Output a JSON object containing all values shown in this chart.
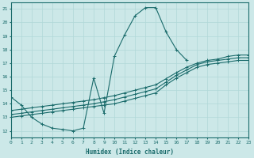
{
  "xlabel": "Humidex (Indice chaleur)",
  "xlim": [
    0,
    23
  ],
  "ylim": [
    11.5,
    21.5
  ],
  "xticks": [
    0,
    1,
    2,
    3,
    4,
    5,
    6,
    7,
    8,
    9,
    10,
    11,
    12,
    13,
    14,
    15,
    16,
    17,
    18,
    19,
    20,
    21,
    22,
    23
  ],
  "yticks": [
    12,
    13,
    14,
    15,
    16,
    17,
    18,
    19,
    20,
    21
  ],
  "bg_color": "#cce8e8",
  "grid_color": "#b0d8d8",
  "line_color": "#1a6b6b",
  "curves": {
    "curve1": {
      "x": [
        0,
        1,
        2,
        3,
        4,
        5,
        6,
        7,
        8,
        9,
        10,
        11,
        12,
        13,
        14,
        15,
        16,
        17
      ],
      "y": [
        14.5,
        13.9,
        13.0,
        12.5,
        12.2,
        12.1,
        12.0,
        12.2,
        15.9,
        13.3,
        17.5,
        19.1,
        20.5,
        21.1,
        21.1,
        19.3,
        18.0,
        17.2
      ]
    },
    "curve2": {
      "x": [
        0,
        1,
        2,
        3,
        4,
        5,
        6,
        7,
        8,
        9,
        10,
        11,
        12,
        13,
        14,
        15,
        16,
        17,
        18,
        19,
        20,
        21,
        22,
        23
      ],
      "y": [
        13.0,
        13.1,
        13.2,
        13.3,
        13.4,
        13.5,
        13.6,
        13.7,
        13.8,
        13.9,
        14.0,
        14.2,
        14.4,
        14.6,
        14.8,
        15.4,
        15.9,
        16.3,
        16.7,
        16.9,
        17.0,
        17.1,
        17.2,
        17.2
      ]
    },
    "curve3": {
      "x": [
        0,
        1,
        2,
        3,
        4,
        5,
        6,
        7,
        8,
        9,
        10,
        11,
        12,
        13,
        14,
        15,
        16,
        17,
        18,
        19,
        20,
        21,
        22,
        23
      ],
      "y": [
        13.2,
        13.3,
        13.4,
        13.5,
        13.6,
        13.7,
        13.8,
        13.9,
        14.0,
        14.15,
        14.3,
        14.5,
        14.7,
        14.9,
        15.1,
        15.6,
        16.1,
        16.5,
        16.9,
        17.1,
        17.2,
        17.3,
        17.4,
        17.4
      ]
    },
    "curve4": {
      "x": [
        0,
        1,
        2,
        3,
        4,
        5,
        6,
        7,
        8,
        9,
        10,
        11,
        12,
        13,
        14,
        15,
        16,
        17,
        18,
        19,
        20,
        21,
        22,
        23
      ],
      "y": [
        13.5,
        13.6,
        13.7,
        13.8,
        13.9,
        14.0,
        14.1,
        14.2,
        14.3,
        14.45,
        14.6,
        14.8,
        15.0,
        15.2,
        15.4,
        15.85,
        16.3,
        16.7,
        17.0,
        17.2,
        17.3,
        17.5,
        17.6,
        17.6
      ]
    }
  }
}
